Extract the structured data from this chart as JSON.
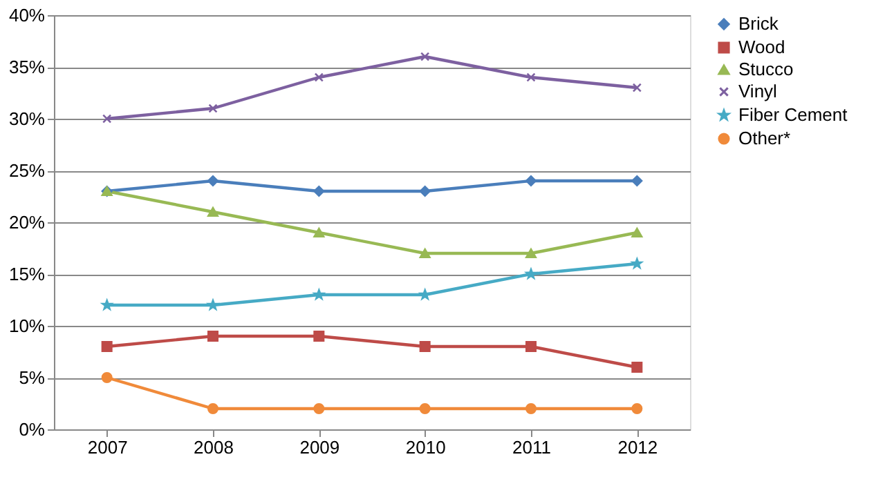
{
  "chart_data": {
    "type": "line",
    "categories": [
      "2007",
      "2008",
      "2009",
      "2010",
      "2011",
      "2012"
    ],
    "series": [
      {
        "name": "Brick",
        "color": "#4a7ebb",
        "marker": "diamond",
        "values": [
          23,
          24,
          23,
          23,
          24,
          24
        ]
      },
      {
        "name": "Wood",
        "color": "#be4b48",
        "marker": "square",
        "values": [
          8,
          9,
          9,
          8,
          8,
          6
        ]
      },
      {
        "name": "Stucco",
        "color": "#98b954",
        "marker": "triangle",
        "values": [
          23,
          21,
          19,
          17,
          17,
          19
        ]
      },
      {
        "name": "Vinyl",
        "color": "#7d60a0",
        "marker": "cross",
        "values": [
          30,
          31,
          34,
          36,
          34,
          33
        ]
      },
      {
        "name": "Fiber Cement",
        "color": "#46aac5",
        "marker": "star",
        "values": [
          12,
          12,
          13,
          13,
          15,
          16
        ]
      },
      {
        "name": "Other*",
        "color": "#f08a3a",
        "marker": "circle",
        "values": [
          5,
          2,
          2,
          2,
          2,
          2
        ]
      }
    ],
    "ylim": [
      0,
      40
    ],
    "yticks": [
      {
        "value": 0,
        "label": "0%"
      },
      {
        "value": 5,
        "label": "5%"
      },
      {
        "value": 10,
        "label": "10%"
      },
      {
        "value": 15,
        "label": "15%"
      },
      {
        "value": 20,
        "label": "20%"
      },
      {
        "value": 25,
        "label": "25%"
      },
      {
        "value": 30,
        "label": "30%"
      },
      {
        "value": 35,
        "label": "35%"
      },
      {
        "value": 40,
        "label": "40%"
      }
    ],
    "grid": "y",
    "legend": "right",
    "line_style": "solid"
  }
}
